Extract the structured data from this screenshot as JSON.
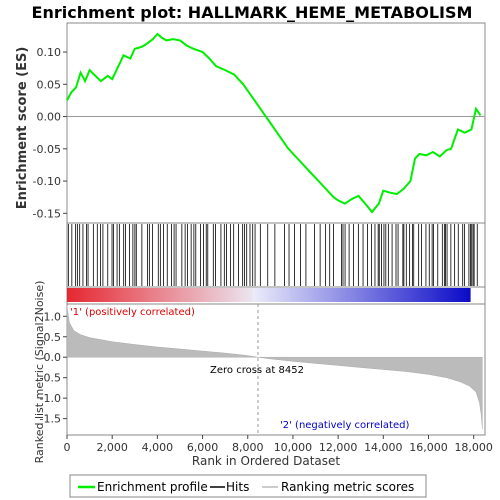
{
  "title": "Enrichment plot: HALLMARK_HEME_METABOLISM",
  "legend": {
    "items": [
      {
        "label": "Enrichment profile",
        "color": "#00ee00"
      },
      {
        "label": "Hits",
        "color": "#000000"
      },
      {
        "label": "Ranking metric scores",
        "color": "#bbbbbb"
      }
    ]
  },
  "chart_data": [
    {
      "type": "line",
      "title": "Enrichment plot: HALLMARK_HEME_METABOLISM",
      "ylabel": "Enrichment score (ES)",
      "xlim": [
        0,
        18500
      ],
      "ylim": [
        -0.165,
        0.145
      ],
      "yticks": [
        "0.10",
        "0.05",
        "0.00",
        "-0.05",
        "-0.10",
        "-0.15"
      ],
      "grid": false,
      "color": "#00ee00",
      "series": [
        {
          "name": "Enrichment profile",
          "x": [
            0,
            200,
            400,
            600,
            800,
            1000,
            1200,
            1500,
            1800,
            2000,
            2300,
            2500,
            2800,
            3000,
            3300,
            3500,
            3800,
            4000,
            4200,
            4400,
            4700,
            5000,
            5300,
            5600,
            6000,
            6300,
            6600,
            7000,
            7400,
            7800,
            8200,
            8600,
            9000,
            9400,
            9800,
            10200,
            10600,
            11000,
            11400,
            11800,
            12000,
            12300,
            12600,
            12900,
            13200,
            13500,
            13800,
            14000,
            14300,
            14600,
            14900,
            15200,
            15400,
            15600,
            15900,
            16200,
            16500,
            16800,
            17000,
            17300,
            17600,
            17900,
            18100,
            18300
          ],
          "y": [
            0.025,
            0.038,
            0.045,
            0.068,
            0.055,
            0.072,
            0.065,
            0.055,
            0.063,
            0.058,
            0.08,
            0.095,
            0.09,
            0.105,
            0.108,
            0.112,
            0.12,
            0.128,
            0.122,
            0.118,
            0.12,
            0.118,
            0.11,
            0.105,
            0.1,
            0.09,
            0.078,
            0.072,
            0.065,
            0.05,
            0.03,
            0.01,
            -0.01,
            -0.03,
            -0.05,
            -0.065,
            -0.08,
            -0.095,
            -0.11,
            -0.125,
            -0.13,
            -0.135,
            -0.128,
            -0.123,
            -0.135,
            -0.148,
            -0.135,
            -0.115,
            -0.118,
            -0.12,
            -0.112,
            -0.1,
            -0.065,
            -0.058,
            -0.06,
            -0.055,
            -0.062,
            -0.052,
            -0.05,
            -0.02,
            -0.025,
            -0.02,
            0.012,
            0.002
          ]
        }
      ]
    },
    {
      "type": "line",
      "xlabel": "Rank in Ordered Dataset",
      "ylabel": "Ranked list metric (Signal2Noise)",
      "xlim": [
        0,
        18500
      ],
      "ylim": [
        -1.9,
        1.3
      ],
      "xticks": [
        "0",
        "2,000",
        "4,000",
        "6,000",
        "8,000",
        "10,000",
        "12,000",
        "14,000",
        "16,000",
        "18,000"
      ],
      "yticks": [
        "1.0",
        "0.5",
        "0.0",
        "-0.5",
        "-1.0",
        "-1.5"
      ],
      "color": "#bbbbbb",
      "zero_cross": 8452,
      "series": [
        {
          "name": "Ranking metric scores",
          "x": [
            0,
            100,
            300,
            600,
            1000,
            2000,
            3000,
            4000,
            5000,
            6000,
            7000,
            8000,
            8452,
            9000,
            10000,
            11000,
            12000,
            13000,
            14000,
            15000,
            16000,
            16800,
            17400,
            17800,
            18100,
            18250,
            18330,
            18380
          ],
          "y": [
            1.25,
            0.85,
            0.65,
            0.55,
            0.48,
            0.38,
            0.31,
            0.25,
            0.2,
            0.15,
            0.1,
            0.04,
            0.0,
            -0.04,
            -0.1,
            -0.15,
            -0.2,
            -0.25,
            -0.3,
            -0.35,
            -0.42,
            -0.5,
            -0.6,
            -0.7,
            -0.85,
            -1.1,
            -1.4,
            -1.75
          ]
        }
      ],
      "annotations": [
        {
          "text": "'1' (positively correlated)",
          "color": "#dd0000"
        },
        {
          "text": "Zero cross at 8452",
          "color": "#000000"
        },
        {
          "text": "'2' (negatively correlated)",
          "color": "#0000cc"
        }
      ]
    }
  ]
}
